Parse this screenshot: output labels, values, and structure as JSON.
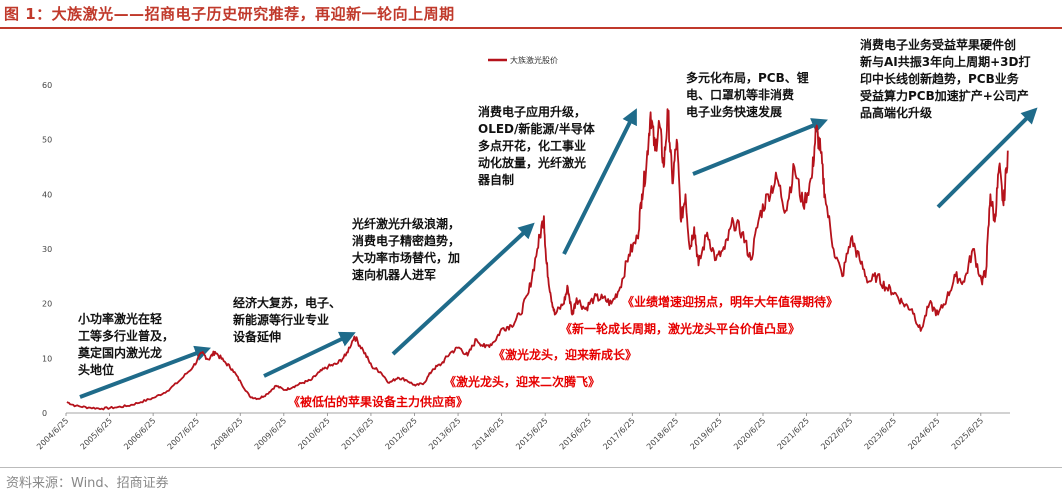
{
  "header": {
    "title": "图 1：大族激光——招商电子历史研究推荐，再迎新一轮向上周期"
  },
  "footer": {
    "source": "资料来源：Wind、招商证券"
  },
  "colors": {
    "accent": "#c0392b",
    "series": "#b5121b",
    "arrow": "#1f6b8a",
    "red_text": "#e60000"
  },
  "chart_data": {
    "type": "line",
    "ylim": [
      0,
      60
    ],
    "yticks": [
      0,
      10,
      20,
      30,
      40,
      50,
      60
    ],
    "xticks": [
      "2004/6/25",
      "2005/6/25",
      "2006/6/25",
      "2007/6/25",
      "2008/6/25",
      "2009/6/25",
      "2010/6/25",
      "2011/6/25",
      "2012/6/25",
      "2013/6/25",
      "2014/6/25",
      "2015/6/25",
      "2016/6/25",
      "2017/6/25",
      "2018/6/25",
      "2019/6/25",
      "2020/6/25",
      "2021/6/25",
      "2022/6/25",
      "2023/6/25",
      "2024/6/25",
      "2025/6/25"
    ],
    "series": [
      {
        "name": "大族激光股价",
        "x": [
          2004.5,
          2004.7,
          2005.0,
          2005.3,
          2005.6,
          2005.9,
          2006.2,
          2006.5,
          2006.8,
          2007.1,
          2007.4,
          2007.6,
          2007.75,
          2007.9,
          2008.1,
          2008.3,
          2008.5,
          2008.7,
          2008.9,
          2009.1,
          2009.3,
          2009.5,
          2009.7,
          2009.9,
          2010.1,
          2010.3,
          2010.5,
          2010.7,
          2010.9,
          2011.1,
          2011.3,
          2011.5,
          2011.7,
          2011.9,
          2012.1,
          2012.3,
          2012.5,
          2012.7,
          2012.9,
          2013.1,
          2013.3,
          2013.5,
          2013.7,
          2013.9,
          2014.1,
          2014.3,
          2014.5,
          2014.7,
          2014.9,
          2015.1,
          2015.3,
          2015.45,
          2015.5,
          2015.6,
          2015.7,
          2015.9,
          2016.0,
          2016.1,
          2016.2,
          2016.4,
          2016.6,
          2016.8,
          2017.0,
          2017.2,
          2017.4,
          2017.6,
          2017.7,
          2017.8,
          2017.9,
          2018.0,
          2018.1,
          2018.2,
          2018.3,
          2018.4,
          2018.5,
          2018.6,
          2018.7,
          2018.8,
          2018.9,
          2019.0,
          2019.2,
          2019.4,
          2019.6,
          2019.8,
          2020.0,
          2020.2,
          2020.4,
          2020.6,
          2020.8,
          2021.0,
          2021.2,
          2021.4,
          2021.6,
          2021.7,
          2021.8,
          2021.9,
          2022.1,
          2022.3,
          2022.5,
          2022.7,
          2022.9,
          2023.1,
          2023.3,
          2023.5,
          2023.7,
          2023.9,
          2024.1,
          2024.3,
          2024.5,
          2024.7,
          2024.9,
          2025.1,
          2025.3,
          2025.5,
          2025.6,
          2025.7,
          2025.8,
          2025.9,
          2026.0,
          2026.1
        ],
        "y": [
          2.0,
          1.3,
          1.0,
          0.8,
          1.0,
          1.3,
          2.0,
          2.8,
          4.0,
          6.0,
          8.5,
          11.0,
          9.8,
          11.2,
          9.5,
          8.0,
          5.5,
          3.0,
          2.6,
          3.5,
          5.0,
          4.2,
          4.8,
          5.5,
          6.0,
          7.5,
          8.5,
          9.0,
          10.5,
          14.0,
          11.5,
          8.5,
          7.5,
          5.5,
          6.5,
          6.0,
          5.0,
          5.5,
          8.0,
          9.0,
          11.0,
          12.0,
          10.5,
          13.5,
          12.0,
          13.0,
          15.5,
          16.0,
          18.0,
          22.0,
          30.0,
          36.0,
          28.0,
          22.0,
          18.0,
          20.0,
          23.0,
          18.0,
          21.0,
          19.0,
          21.0,
          21.0,
          20.0,
          23.0,
          29.0,
          32.0,
          40.0,
          45.0,
          55.0,
          48.0,
          53.0,
          45.0,
          55.0,
          42.0,
          50.0,
          35.0,
          40.0,
          30.0,
          34.0,
          27.0,
          33.0,
          28.0,
          30.0,
          35.0,
          33.0,
          28.0,
          36.0,
          40.0,
          43.0,
          37.0,
          45.0,
          38.0,
          43.0,
          52.0,
          48.0,
          40.0,
          30.0,
          25.0,
          32.0,
          28.0,
          24.0,
          25.0,
          23.0,
          22.0,
          20.0,
          19.0,
          15.0,
          20.0,
          18.0,
          21.0,
          25.0,
          24.0,
          30.0,
          24.0,
          26.0,
          40.0,
          35.0,
          45.0,
          38.0,
          48.0
        ]
      }
    ]
  },
  "legend": {
    "label": "大族激光股价"
  },
  "annotations": {
    "a1": [
      "小功率激光在轻",
      "工等多行业普及，",
      "奠定国内激光龙",
      "头地位"
    ],
    "a2": [
      "经济大复苏，电子、",
      "新能源等行业专业",
      "设备延伸"
    ],
    "a3": [
      "光纤激光升级浪潮，",
      "消费电子精密趋势，",
      "大功率市场替代，加",
      "速向机器人进军"
    ],
    "a4": [
      "消费电子应用升级，",
      "OLED/新能源/半导体",
      "多点开花，化工事业",
      "动化放量，光纤激光",
      "器自制"
    ],
    "a5": [
      "多元化布局，PCB、锂",
      "电、口罩机等非消费",
      "电子业务快速发展"
    ],
    "a6": [
      "消费电子业务受益苹果硬件创",
      "新与AI共振3年向上周期+3D打",
      "印中长线创新趋势，PCB业务",
      "受益算力PCB加速扩产+公司产",
      "品高端化升级"
    ],
    "r1": "《被低估的苹果设备主力供应商》",
    "r2": "《激光龙头，迎来二次腾飞》",
    "r3": "《激光龙头，迎来新成长》",
    "r4": "《新一轮成长周期，激光龙头平台价值凸显》",
    "r5": "《业绩增速迎拐点，明年大年值得期待》"
  }
}
